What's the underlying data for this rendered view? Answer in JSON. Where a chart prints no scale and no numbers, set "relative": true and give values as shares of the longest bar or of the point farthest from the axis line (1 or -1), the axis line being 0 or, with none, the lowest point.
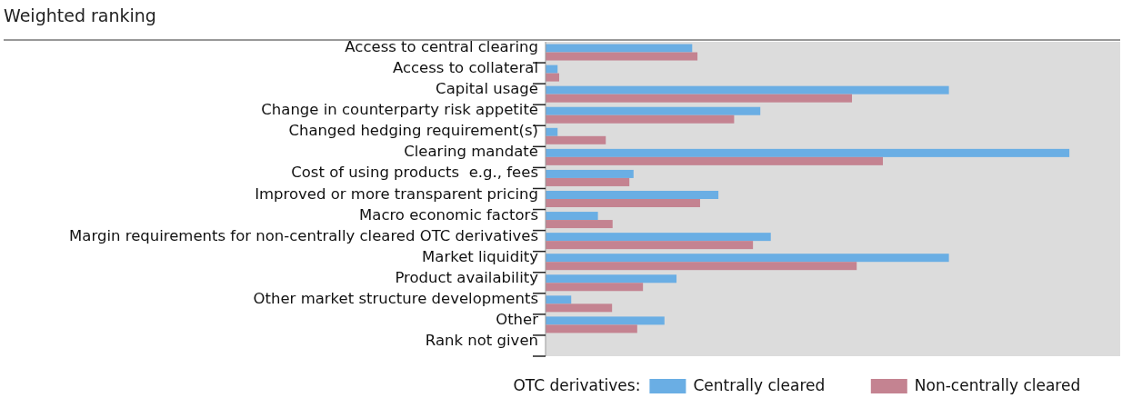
{
  "chart_data": {
    "type": "bar",
    "orientation": "horizontal",
    "relative": true,
    "title": "Weighted ranking",
    "legend_title": "OTC derivatives:",
    "legend": "bottom right",
    "categories": [
      "Access to central clearing",
      "Access to collateral",
      "Capital usage",
      "Change in counterparty risk appetite",
      "Changed hedging requirement(s)",
      "Clearing mandate",
      "Cost of using products  e.g., fees",
      "Improved or more transparent pricing",
      "Macro economic factors",
      "Margin requirements for non-centrally cleared OTC derivatives",
      "Market liquidity",
      "Product availability",
      "Other market structure developments",
      "Other",
      "Rank not given"
    ],
    "series": [
      {
        "name": "Centrally cleared",
        "color": "#6aaee4",
        "values": [
          0.28,
          0.023,
          0.77,
          0.41,
          0.023,
          1,
          0.168,
          0.33,
          0.1,
          0.43,
          0.77,
          0.25,
          0.049,
          0.227,
          0
        ]
      },
      {
        "name": "Non-centrally cleared",
        "color": "#c48391",
        "values": [
          0.29,
          0.026,
          0.585,
          0.36,
          0.115,
          0.644,
          0.16,
          0.295,
          0.128,
          0.396,
          0.594,
          0.186,
          0.127,
          0.175,
          0
        ]
      }
    ]
  }
}
